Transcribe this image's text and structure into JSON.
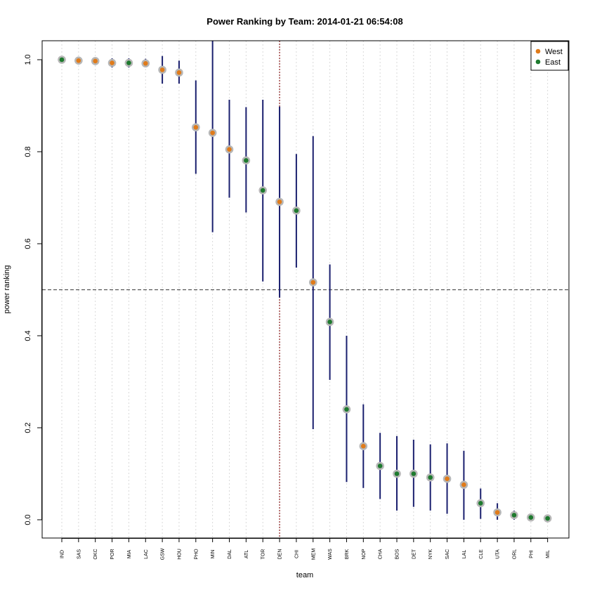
{
  "chart_data": {
    "type": "scatter",
    "title": "Power Ranking by Team: 2014-01-21 06:54:08",
    "xlabel": "team",
    "ylabel": "power ranking",
    "ylim": [
      0,
      1
    ],
    "yticks": [
      "0.0",
      "0.2",
      "0.4",
      "0.6",
      "0.8",
      "1.0"
    ],
    "categories": [
      "IND",
      "SAS",
      "OKC",
      "POR",
      "MIA",
      "LAC",
      "GSW",
      "HOU",
      "PHO",
      "MIN",
      "DAL",
      "ATL",
      "TOR",
      "DEN",
      "CHI",
      "MEM",
      "WAS",
      "BRK",
      "NOP",
      "CHA",
      "BOS",
      "DET",
      "NYK",
      "SAC",
      "LAL",
      "CLE",
      "UTA",
      "ORL",
      "PHI",
      "MIL"
    ],
    "values": [
      1.0,
      0.998,
      0.997,
      0.993,
      0.993,
      0.992,
      0.978,
      0.972,
      0.853,
      0.841,
      0.805,
      0.781,
      0.716,
      0.691,
      0.672,
      0.516,
      0.43,
      0.24,
      0.16,
      0.117,
      0.1,
      0.1,
      0.092,
      0.089,
      0.076,
      0.036,
      0.016,
      0.01,
      0.005,
      0.003
    ],
    "lower": [
      1.0,
      0.998,
      0.997,
      0.983,
      0.983,
      0.984,
      0.948,
      0.948,
      0.752,
      0.625,
      0.7,
      0.668,
      0.518,
      0.483,
      0.548,
      0.197,
      0.304,
      0.082,
      0.069,
      0.045,
      0.02,
      0.028,
      0.02,
      0.013,
      0.0,
      0.002,
      0.0,
      0.0,
      0.0,
      0.0
    ],
    "upper": [
      1.0,
      0.998,
      0.997,
      1.003,
      1.003,
      1.002,
      1.008,
      0.998,
      0.955,
      1.042,
      0.913,
      0.897,
      0.913,
      0.898,
      0.795,
      0.834,
      0.555,
      0.4,
      0.251,
      0.189,
      0.182,
      0.174,
      0.164,
      0.166,
      0.15,
      0.068,
      0.036,
      0.02,
      0.01,
      0.006
    ],
    "conference": [
      "East",
      "West",
      "West",
      "West",
      "East",
      "West",
      "West",
      "West",
      "West",
      "West",
      "West",
      "East",
      "East",
      "West",
      "East",
      "West",
      "East",
      "East",
      "West",
      "East",
      "East",
      "East",
      "East",
      "West",
      "West",
      "East",
      "West",
      "East",
      "East",
      "East"
    ],
    "reference_lines": {
      "horizontal_y": 0.5,
      "vertical_category": "DEN"
    },
    "legend": {
      "position": "top-right",
      "entries": [
        {
          "name": "West",
          "color": "#e07b1a"
        },
        {
          "name": "East",
          "color": "#1e7a2e"
        }
      ]
    },
    "grid": "vertical dotted per category",
    "colors": {
      "interval": "#1a1f6e",
      "point_ring": "#b7b7b7",
      "hline": "#555555",
      "vline": "#8b1a1a",
      "grid": "#d9d9d9"
    }
  }
}
